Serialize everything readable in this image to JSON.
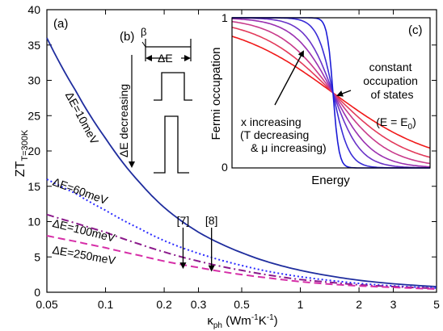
{
  "chart_data": [
    {
      "type": "line",
      "panel_label": "(a)",
      "xscale": "log",
      "xlim": [
        0.05,
        5
      ],
      "ylim": [
        0,
        40
      ],
      "x_ticks": [
        0.05,
        0.1,
        0.2,
        0.3,
        0.5,
        1,
        2,
        3,
        5
      ],
      "x_tick_labels": [
        "0.05",
        "0.1",
        "0.2",
        "0.3",
        "0.5",
        "1",
        "2",
        "3",
        "5"
      ],
      "y_ticks": [
        0,
        5,
        10,
        15,
        20,
        25,
        30,
        35,
        40
      ],
      "y_tick_labels": [
        "0",
        "5",
        "10",
        "15",
        "20",
        "25",
        "30",
        "35",
        "40"
      ],
      "xlabel": {
        "main": "κ",
        "sub": "ph",
        "rest": " (Wm",
        "sup1": "-1",
        "mid": "K",
        "sup2": "-1",
        "end": ")"
      },
      "ylabel": {
        "main": "ZT",
        "sub": "T=300K"
      },
      "grid": false,
      "series": [
        {
          "label": "ΔE=10meV",
          "style": "solid",
          "color": "#1f2d9e",
          "x": [
            0.05,
            0.07,
            0.1,
            0.15,
            0.2,
            0.3,
            0.5,
            0.7,
            1,
            1.5,
            2,
            3,
            5
          ],
          "y": [
            36,
            28.6,
            21.8,
            15.5,
            12,
            8.5,
            5.6,
            4.2,
            3.1,
            2.2,
            1.7,
            1.2,
            0.8
          ]
        },
        {
          "label": "ΔE=60meV",
          "style": "dotted",
          "color": "#2b2bff",
          "x": [
            0.05,
            0.07,
            0.1,
            0.15,
            0.2,
            0.3,
            0.5,
            0.7,
            1,
            1.5,
            2,
            3,
            5
          ],
          "y": [
            16,
            14,
            11.6,
            9,
            7.3,
            5.5,
            3.8,
            2.9,
            2.2,
            1.6,
            1.25,
            0.9,
            0.6
          ]
        },
        {
          "label": "ΔE=100meV",
          "style": "dashdot",
          "color": "#8b1a8b",
          "x": [
            0.05,
            0.07,
            0.1,
            0.15,
            0.2,
            0.3,
            0.5,
            0.7,
            1,
            1.5,
            2,
            3,
            5
          ],
          "y": [
            11,
            9.8,
            8.5,
            6.8,
            5.7,
            4.4,
            3.1,
            2.4,
            1.8,
            1.35,
            1.05,
            0.8,
            0.55
          ]
        },
        {
          "label": "ΔE=250meV",
          "style": "dashed",
          "color": "#d62fa8",
          "x": [
            0.05,
            0.07,
            0.1,
            0.15,
            0.2,
            0.3,
            0.5,
            0.7,
            1,
            1.5,
            2,
            3,
            5
          ],
          "y": [
            8,
            7.2,
            6.3,
            5.2,
            4.4,
            3.5,
            2.5,
            2,
            1.5,
            1.1,
            0.9,
            0.7,
            0.45
          ]
        }
      ],
      "series_label_positions": [
        {
          "x": 0.062,
          "y": 28
        },
        {
          "x": 0.053,
          "y": 15.2
        },
        {
          "x": 0.053,
          "y": 9.3
        },
        {
          "x": 0.053,
          "y": 5.5
        }
      ],
      "annotations": [
        {
          "text": "[7]",
          "x": 0.25,
          "y": 3.3,
          "label_y": 9.6
        },
        {
          "text": "[8]",
          "x": 0.35,
          "y": 2.9,
          "label_y": 9.6
        }
      ]
    },
    {
      "type": "diagram",
      "panel_label": "(b)",
      "text_delta": "ΔE",
      "text_beta": "β",
      "text_vertical": "ΔE decreasing"
    },
    {
      "type": "line",
      "panel_label": "(c)",
      "xlabel": "Energy",
      "ylabel": "Fermi occupation",
      "ylim": [
        0,
        1
      ],
      "y_tick_labels": [
        "0",
        "1"
      ],
      "xlim": [
        0,
        10
      ],
      "crossing": {
        "x": 5.1,
        "y": 0.5
      },
      "series": [
        {
          "kT": 0.15,
          "color": "#1b1bd6"
        },
        {
          "kT": 0.4,
          "color": "#3a2dd6"
        },
        {
          "kT": 0.7,
          "color": "#6a33c8"
        },
        {
          "kT": 1.0,
          "color": "#9a30b0"
        },
        {
          "kT": 1.4,
          "color": "#c83a8a"
        },
        {
          "kT": 1.9,
          "color": "#e23a5a"
        },
        {
          "kT": 2.6,
          "color": "#f01818"
        }
      ],
      "arrow_label_lines": [
        "x increasing",
        "(T decreasing",
        "& μ increasing)"
      ],
      "side_label_lines": [
        "constant",
        "occupation",
        "of states"
      ],
      "side_label_eq": {
        "pre": "(E = E",
        "sub": "0",
        "post": ")"
      }
    }
  ]
}
